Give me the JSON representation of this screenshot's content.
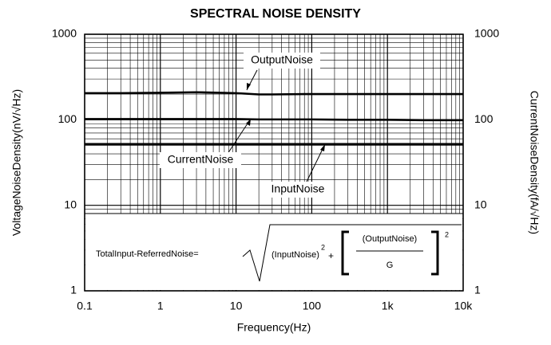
{
  "chart_data": {
    "type": "line",
    "title": "SPECTRAL NOISE DENSITY",
    "x_label": "Frequency(Hz)",
    "y_label": "VoltageNoiseDensity(nV/√Hz)",
    "y2_label": "CurrentNoiseDensity(fA/√Hz)",
    "x": [
      0.1,
      0.3,
      1,
      3,
      10,
      20,
      30,
      100,
      300,
      1000,
      3000,
      10000
    ],
    "series": [
      {
        "name": "OutputNoise",
        "color": "#000000",
        "values": [
          205,
          205,
          207,
          210,
          205,
          198,
          198,
          200,
          200,
          200,
          200,
          200
        ]
      },
      {
        "name": "CurrentNoise",
        "color": "#000000",
        "axis": "y2",
        "values": [
          102,
          102,
          102,
          102,
          102,
          101,
          101,
          101,
          100,
          100,
          99,
          99
        ]
      },
      {
        "name": "InputNoise",
        "color": "#000000",
        "values": [
          52,
          52,
          52,
          52,
          52,
          52,
          52,
          52,
          52,
          52,
          52,
          52
        ]
      }
    ],
    "xlim": [
      0.1,
      10000
    ],
    "xticks": [
      0.1,
      1,
      10,
      100,
      {
        "value": 1000,
        "label": "1k"
      },
      {
        "value": 10000,
        "label": "10k"
      }
    ],
    "ylim": [
      1,
      1000
    ],
    "yticks": [
      1,
      10,
      100,
      1000
    ],
    "y2lim": [
      1,
      1000
    ],
    "y2ticks": [
      1,
      10,
      100,
      1000
    ],
    "xscale": "log",
    "yscale": "log",
    "grid": true,
    "minor_grid": true,
    "formula": {
      "label": "TotalInput-ReferredNoise=",
      "term1": "(InputNoise)",
      "exp1": "2",
      "plus": "+",
      "numerator": "(OutputNoise)",
      "denominator": "G",
      "exp2": "2"
    }
  }
}
